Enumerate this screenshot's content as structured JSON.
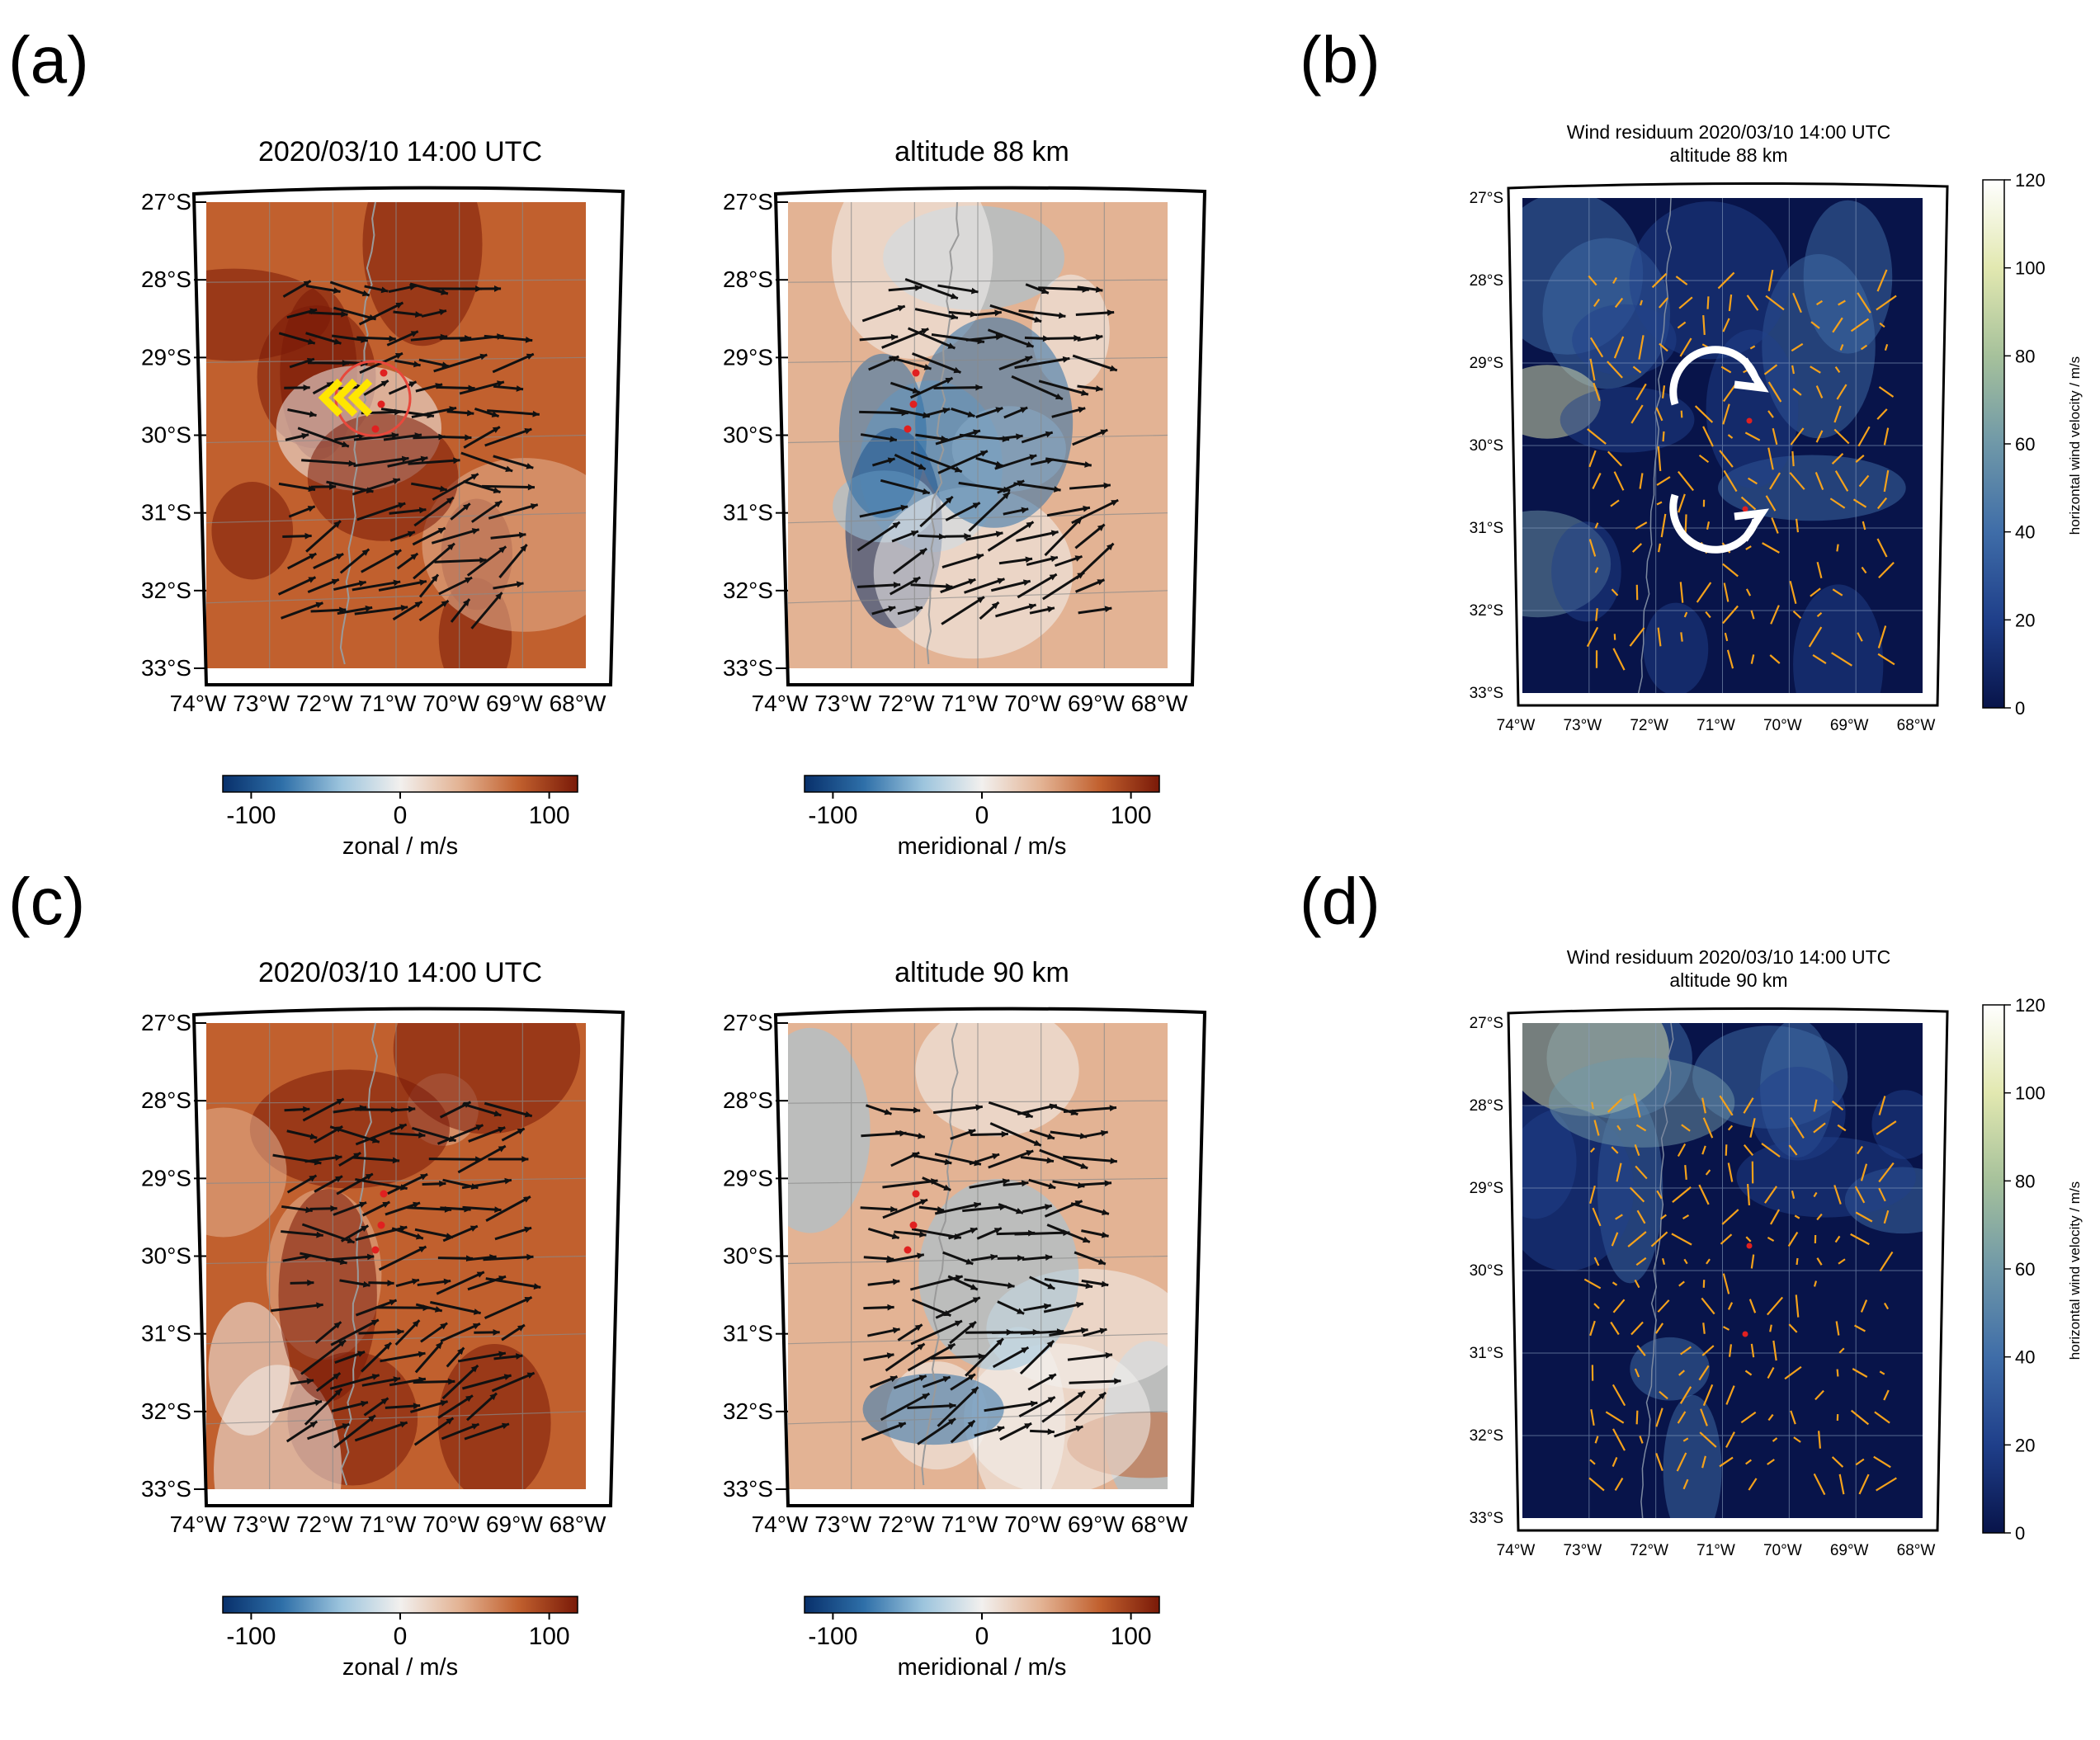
{
  "panel_labels": [
    "(a)",
    "(b)",
    "(c)",
    "(d)"
  ],
  "axes": {
    "lat_ticks": [
      "27°S",
      "28°S",
      "29°S",
      "30°S",
      "31°S",
      "32°S",
      "33°S"
    ],
    "lon_ticks": [
      "74°W",
      "73°W",
      "72°W",
      "71°W",
      "70°W",
      "69°W",
      "68°W"
    ]
  },
  "panels": [
    {
      "id": "a-zonal",
      "title": "2020/03/10 14:00 UTC",
      "field": "zonal",
      "cbar_label": "zonal / m/s",
      "cbar_ticks": [
        "-100",
        "0",
        "100"
      ],
      "seed": 11
    },
    {
      "id": "a-meridional",
      "title": "altitude 88 km",
      "field": "meridional",
      "cbar_label": "meridional / m/s",
      "cbar_ticks": [
        "-100",
        "0",
        "100"
      ],
      "seed": 23
    },
    {
      "id": "c-zonal",
      "title": "2020/03/10 14:00 UTC",
      "field": "zonal",
      "cbar_label": "zonal / m/s",
      "cbar_ticks": [
        "-100",
        "0",
        "100"
      ],
      "seed": 37
    },
    {
      "id": "c-meridional",
      "title": "altitude 90 km",
      "field": "meridional",
      "cbar_label": "meridional / m/s",
      "cbar_ticks": [
        "-100",
        "0",
        "100"
      ],
      "seed": 41
    }
  ],
  "residual_panels": [
    {
      "id": "b",
      "title_line1": "Wind residuum 2020/03/10 14:00 UTC",
      "title_line2": "altitude 88 km",
      "cbar_label": "horizontal wind velocity / m/s",
      "cbar_ticks": [
        "0",
        "20",
        "40",
        "60",
        "80",
        "100",
        "120"
      ],
      "seed": 53
    },
    {
      "id": "d",
      "title_line1": "Wind residuum 2020/03/10 14:00 UTC",
      "title_line2": "altitude 90 km",
      "cbar_label": "horizontal wind velocity / m/s",
      "cbar_ticks": [
        "0",
        "20",
        "40",
        "60",
        "80",
        "100",
        "120"
      ],
      "seed": 67
    }
  ],
  "colors": {
    "diverging": [
      "#08306b",
      "#2e6fa8",
      "#9cc4dd",
      "#f2f0ee",
      "#e3b394",
      "#c1602e",
      "#7a1a08"
    ],
    "sequential": [
      "#08144a",
      "#1f3f8a",
      "#3f6da8",
      "#6f98a8",
      "#a6c19b",
      "#e2e8b0",
      "#ffffff"
    ],
    "residual_arrow": "#f5a21b",
    "station": "#e02020"
  }
}
